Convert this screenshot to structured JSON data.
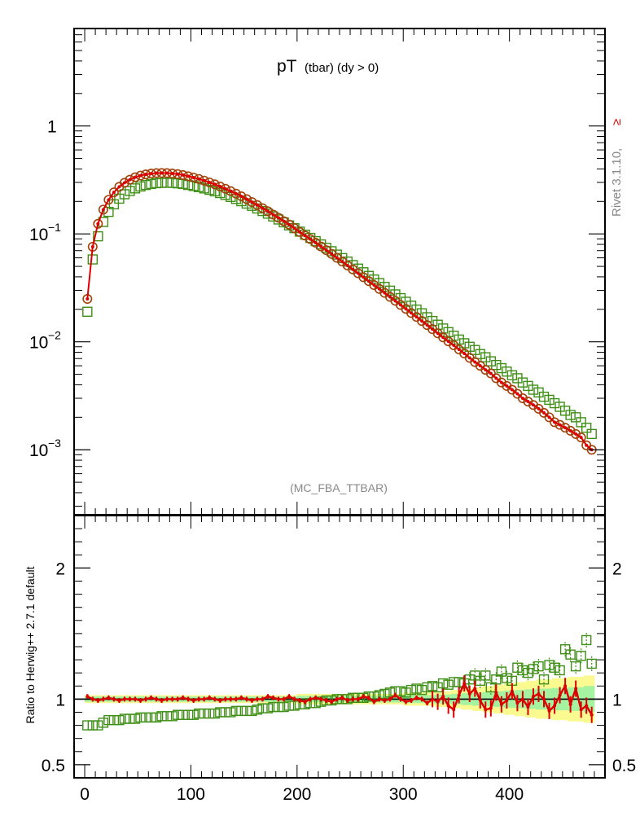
{
  "colors": {
    "herwig_default": "#dd0000",
    "variant_circles": "#a0420a",
    "variant_squares": "#3f8f17",
    "band_inner": "#a5f2a0",
    "band_outer": "#fafa90",
    "axis": "#000000",
    "annotation": "#888888"
  },
  "header": {
    "title_main": "pT",
    "title_sub": "(tbar) (dy > 0)",
    "watermark": "(MC_FBA_TTBAR)",
    "rivet_label": "Rivet 3.1.10,",
    "rivet_symbol": "≥"
  },
  "ratio_panel": {
    "ylabel": "Ratio to Herwig++ 2.7.1 default"
  },
  "chart_data": [
    {
      "type": "scatter",
      "panel": "main",
      "title": "pT (tbar) (dy > 0)",
      "yscale": "log",
      "xlim": [
        -10,
        490
      ],
      "ylim": [
        0.00025,
        8
      ],
      "y_ticks": [
        {
          "value": 0.001,
          "label": "10",
          "exp": "−3"
        },
        {
          "value": 0.01,
          "label": "10",
          "exp": "−2"
        },
        {
          "value": 0.1,
          "label": "10",
          "exp": "−1"
        },
        {
          "value": 1,
          "label": "1",
          "exp": ""
        }
      ],
      "x": [
        2.5,
        7.5,
        12.5,
        17.5,
        22.5,
        27.5,
        32.5,
        37.5,
        42.5,
        47.5,
        52.5,
        57.5,
        62.5,
        67.5,
        72.5,
        77.5,
        82.5,
        87.5,
        92.5,
        97.5,
        102.5,
        107.5,
        112.5,
        117.5,
        122.5,
        127.5,
        132.5,
        137.5,
        142.5,
        147.5,
        152.5,
        157.5,
        162.5,
        167.5,
        172.5,
        177.5,
        182.5,
        187.5,
        192.5,
        197.5,
        202.5,
        207.5,
        212.5,
        217.5,
        222.5,
        227.5,
        232.5,
        237.5,
        242.5,
        247.5,
        252.5,
        257.5,
        262.5,
        267.5,
        272.5,
        277.5,
        282.5,
        287.5,
        292.5,
        297.5,
        302.5,
        307.5,
        312.5,
        317.5,
        322.5,
        327.5,
        332.5,
        337.5,
        342.5,
        347.5,
        352.5,
        357.5,
        362.5,
        367.5,
        372.5,
        377.5,
        382.5,
        387.5,
        392.5,
        397.5,
        402.5,
        407.5,
        412.5,
        417.5,
        422.5,
        427.5,
        432.5,
        437.5,
        442.5,
        447.5,
        452.5,
        457.5,
        462.5,
        467.5,
        472.5,
        477.5
      ],
      "series": [
        {
          "role": "herwig_default",
          "style": "line",
          "values": [
            0.025,
            0.076,
            0.124,
            0.168,
            0.207,
            0.243,
            0.273,
            0.298,
            0.318,
            0.335,
            0.347,
            0.356,
            0.362,
            0.366,
            0.367,
            0.366,
            0.363,
            0.358,
            0.351,
            0.342,
            0.333,
            0.323,
            0.312,
            0.3,
            0.288,
            0.275,
            0.262,
            0.249,
            0.236,
            0.223,
            0.21,
            0.197,
            0.185,
            0.173,
            0.162,
            0.151,
            0.141,
            0.131,
            0.122,
            0.113,
            0.104,
            0.0965,
            0.0895,
            0.0828,
            0.0765,
            0.0707,
            0.0652,
            0.0601,
            0.0554,
            0.051,
            0.0469,
            0.0432,
            0.0397,
            0.0365,
            0.0336,
            0.0309,
            0.0284,
            0.0261,
            0.024,
            0.022,
            0.0202,
            0.0185,
            0.017,
            0.0156,
            0.0143,
            0.0131,
            0.012,
            0.011,
            0.0101,
            0.0093,
            0.0085,
            0.0078,
            0.0071,
            0.0065,
            0.006,
            0.0055,
            0.0051,
            0.0046,
            0.0042,
            0.0039,
            0.0036,
            0.0033,
            0.003,
            0.0028,
            0.0026,
            0.0024,
            0.0022,
            0.002,
            0.0018,
            0.0017,
            0.0016,
            0.0015,
            0.0014,
            0.0013,
            0.0011,
            0.001
          ]
        },
        {
          "role": "variant_circles",
          "style": "circle",
          "values": [
            0.025,
            0.076,
            0.124,
            0.168,
            0.207,
            0.243,
            0.273,
            0.298,
            0.318,
            0.335,
            0.347,
            0.356,
            0.362,
            0.366,
            0.367,
            0.366,
            0.363,
            0.358,
            0.351,
            0.342,
            0.333,
            0.323,
            0.312,
            0.3,
            0.288,
            0.275,
            0.262,
            0.249,
            0.236,
            0.223,
            0.21,
            0.197,
            0.185,
            0.173,
            0.162,
            0.151,
            0.141,
            0.131,
            0.122,
            0.113,
            0.104,
            0.0965,
            0.0895,
            0.0828,
            0.0765,
            0.0707,
            0.0652,
            0.0601,
            0.0554,
            0.051,
            0.0469,
            0.0432,
            0.0397,
            0.0365,
            0.0336,
            0.0309,
            0.0284,
            0.0261,
            0.024,
            0.022,
            0.0202,
            0.0185,
            0.017,
            0.0156,
            0.0143,
            0.0131,
            0.012,
            0.011,
            0.0101,
            0.0093,
            0.0085,
            0.0078,
            0.0071,
            0.0065,
            0.006,
            0.0055,
            0.0051,
            0.0046,
            0.0042,
            0.0039,
            0.0036,
            0.0033,
            0.003,
            0.0028,
            0.0026,
            0.0024,
            0.0022,
            0.002,
            0.0018,
            0.0017,
            0.0016,
            0.0015,
            0.0014,
            0.0013,
            0.0011,
            0.001
          ]
        },
        {
          "role": "variant_squares",
          "style": "square",
          "values": [
            0.019,
            0.058,
            0.095,
            0.129,
            0.16,
            0.188,
            0.212,
            0.233,
            0.25,
            0.264,
            0.275,
            0.284,
            0.29,
            0.295,
            0.297,
            0.298,
            0.297,
            0.294,
            0.29,
            0.284,
            0.278,
            0.271,
            0.264,
            0.256,
            0.248,
            0.239,
            0.23,
            0.22,
            0.211,
            0.201,
            0.191,
            0.182,
            0.172,
            0.163,
            0.154,
            0.145,
            0.136,
            0.128,
            0.12,
            0.113,
            0.105,
            0.0983,
            0.0918,
            0.0857,
            0.0799,
            0.0743,
            0.0691,
            0.0643,
            0.0597,
            0.0554,
            0.0514,
            0.0477,
            0.0441,
            0.0408,
            0.0378,
            0.035,
            0.0323,
            0.0298,
            0.0275,
            0.0254,
            0.0235,
            0.0216,
            0.0199,
            0.0184,
            0.0169,
            0.0156,
            0.0144,
            0.0133,
            0.0123,
            0.0114,
            0.0105,
            0.0097,
            0.009,
            0.0084,
            0.0077,
            0.0072,
            0.0066,
            0.0061,
            0.0057,
            0.0053,
            0.0049,
            0.0046,
            0.0042,
            0.0039,
            0.0036,
            0.0034,
            0.0031,
            0.0029,
            0.0027,
            0.0025,
            0.0023,
            0.0021,
            0.002,
            0.0018,
            0.0016,
            0.0014
          ]
        }
      ]
    },
    {
      "type": "scatter",
      "panel": "ratio",
      "ylabel": "Ratio to Herwig++ 2.7.1 default",
      "xlim": [
        -10,
        490
      ],
      "ylim": [
        0.4,
        2.4
      ],
      "x_ticks": [
        0,
        100,
        200,
        300,
        400
      ],
      "y_ticks": [
        0.5,
        1,
        2
      ],
      "y_tick_labels": [
        "0.5",
        "1",
        "2"
      ],
      "x": [
        2.5,
        7.5,
        12.5,
        17.5,
        22.5,
        27.5,
        32.5,
        37.5,
        42.5,
        47.5,
        52.5,
        57.5,
        62.5,
        67.5,
        72.5,
        77.5,
        82.5,
        87.5,
        92.5,
        97.5,
        102.5,
        107.5,
        112.5,
        117.5,
        122.5,
        127.5,
        132.5,
        137.5,
        142.5,
        147.5,
        152.5,
        157.5,
        162.5,
        167.5,
        172.5,
        177.5,
        182.5,
        187.5,
        192.5,
        197.5,
        202.5,
        207.5,
        212.5,
        217.5,
        222.5,
        227.5,
        232.5,
        237.5,
        242.5,
        247.5,
        252.5,
        257.5,
        262.5,
        267.5,
        272.5,
        277.5,
        282.5,
        287.5,
        292.5,
        297.5,
        302.5,
        307.5,
        312.5,
        317.5,
        322.5,
        327.5,
        332.5,
        337.5,
        342.5,
        347.5,
        352.5,
        357.5,
        362.5,
        367.5,
        372.5,
        377.5,
        382.5,
        387.5,
        392.5,
        397.5,
        402.5,
        407.5,
        412.5,
        417.5,
        422.5,
        427.5,
        432.5,
        437.5,
        442.5,
        447.5,
        452.5,
        457.5,
        462.5,
        467.5,
        472.5,
        477.5
      ],
      "band_inner_halfwidth": [
        0.02,
        0.02,
        0.02,
        0.02,
        0.02,
        0.02,
        0.02,
        0.02,
        0.02,
        0.02,
        0.02,
        0.02,
        0.02,
        0.02,
        0.02,
        0.02,
        0.02,
        0.02,
        0.02,
        0.02,
        0.02,
        0.02,
        0.02,
        0.02,
        0.02,
        0.02,
        0.02,
        0.02,
        0.02,
        0.02,
        0.02,
        0.02,
        0.02,
        0.02,
        0.02,
        0.02,
        0.02,
        0.02,
        0.02,
        0.02,
        0.025,
        0.025,
        0.025,
        0.025,
        0.025,
        0.025,
        0.025,
        0.025,
        0.025,
        0.025,
        0.025,
        0.025,
        0.025,
        0.025,
        0.025,
        0.025,
        0.025,
        0.025,
        0.025,
        0.025,
        0.03,
        0.03,
        0.03,
        0.03,
        0.03,
        0.03,
        0.035,
        0.035,
        0.035,
        0.04,
        0.04,
        0.045,
        0.045,
        0.05,
        0.05,
        0.055,
        0.055,
        0.06,
        0.06,
        0.065,
        0.065,
        0.07,
        0.07,
        0.075,
        0.075,
        0.08,
        0.08,
        0.08,
        0.085,
        0.085,
        0.085,
        0.09,
        0.09,
        0.09,
        0.1,
        0.1
      ],
      "band_outer_halfwidth": [
        0.03,
        0.03,
        0.03,
        0.03,
        0.03,
        0.03,
        0.03,
        0.03,
        0.03,
        0.03,
        0.03,
        0.03,
        0.03,
        0.03,
        0.03,
        0.03,
        0.03,
        0.03,
        0.03,
        0.03,
        0.03,
        0.03,
        0.03,
        0.03,
        0.03,
        0.03,
        0.03,
        0.03,
        0.03,
        0.03,
        0.03,
        0.03,
        0.03,
        0.03,
        0.03,
        0.03,
        0.03,
        0.03,
        0.03,
        0.03,
        0.04,
        0.04,
        0.04,
        0.04,
        0.04,
        0.04,
        0.04,
        0.04,
        0.04,
        0.04,
        0.04,
        0.04,
        0.04,
        0.04,
        0.04,
        0.04,
        0.04,
        0.04,
        0.04,
        0.04,
        0.05,
        0.05,
        0.05,
        0.05,
        0.05,
        0.05,
        0.06,
        0.06,
        0.06,
        0.07,
        0.07,
        0.08,
        0.08,
        0.09,
        0.09,
        0.1,
        0.1,
        0.11,
        0.11,
        0.12,
        0.12,
        0.13,
        0.13,
        0.14,
        0.14,
        0.15,
        0.15,
        0.15,
        0.16,
        0.16,
        0.16,
        0.17,
        0.17,
        0.17,
        0.18,
        0.18
      ],
      "series": [
        {
          "role": "herwig_default",
          "style": "line",
          "values": [
            1.02,
            1.0,
            0.99,
            1.0,
            1.01,
            1.0,
            0.99,
            1.0,
            1.0,
            1.0,
            0.99,
            1.0,
            1.01,
            1.0,
            0.99,
            1.0,
            1.0,
            1.0,
            1.01,
            1.0,
            0.99,
            1.0,
            1.0,
            1.01,
            1.0,
            0.99,
            1.0,
            1.0,
            1.0,
            1.01,
            1.0,
            0.99,
            1.0,
            1.0,
            1.02,
            1.01,
            1.0,
            1.0,
            1.02,
            1.0,
            0.99,
            0.98,
            1.0,
            1.01,
            1.0,
            0.99,
            0.98,
            1.0,
            1.01,
            0.99,
            1.0,
            1.0,
            1.02,
            1.01,
            0.98,
            1.0,
            0.99,
            1.0,
            1.03,
            1.0,
            0.98,
            0.99,
            1.01,
            1.0,
            0.97,
            1.0,
            0.98,
            1.02,
            0.95,
            0.92,
            1.03,
            1.12,
            1.04,
            1.08,
            0.99,
            0.92,
            0.93,
            1.05,
            0.96,
            0.99,
            1.06,
            0.97,
            1.0,
            0.94,
            1.02,
            1.04,
            1.0,
            0.91,
            0.95,
            1.03,
            1.1,
            0.96,
            1.08,
            0.92,
            0.95,
            0.88
          ]
        },
        {
          "role": "variant_circles",
          "style": "circle",
          "values": [
            1.0,
            1.0,
            1.0,
            1.0,
            1.0,
            1.0,
            1.0,
            1.0,
            1.0,
            1.0,
            1.0,
            1.0,
            1.0,
            1.0,
            1.0,
            1.0,
            1.0,
            1.0,
            1.0,
            1.0,
            1.0,
            1.0,
            1.0,
            1.0,
            1.0,
            1.0,
            1.0,
            1.0,
            1.0,
            1.0,
            1.0,
            1.0,
            1.0,
            1.0,
            1.0,
            1.0,
            1.0,
            1.0,
            1.0,
            1.0,
            1.0,
            1.0,
            1.0,
            1.0,
            1.0,
            1.0,
            1.0,
            1.0,
            1.0,
            1.0,
            1.0,
            1.0,
            1.0,
            1.0,
            1.0,
            1.0,
            1.0,
            1.0,
            1.0,
            1.0,
            1.0,
            1.0,
            1.0,
            1.0,
            1.0,
            1.0,
            1.0,
            1.0,
            1.0,
            1.0,
            1.0,
            1.0,
            1.0,
            1.0,
            1.0,
            1.0,
            1.0,
            1.0,
            1.0,
            1.0,
            1.0,
            1.0,
            1.0,
            1.0,
            1.0,
            1.0,
            1.0,
            1.0,
            1.0,
            1.0,
            1.0,
            1.0,
            1.0,
            1.0,
            1.0,
            1.0
          ]
        },
        {
          "role": "variant_squares",
          "style": "square",
          "values": [
            0.8,
            0.8,
            0.8,
            0.82,
            0.84,
            0.84,
            0.84,
            0.85,
            0.85,
            0.85,
            0.86,
            0.86,
            0.86,
            0.86,
            0.87,
            0.87,
            0.87,
            0.88,
            0.88,
            0.88,
            0.88,
            0.89,
            0.89,
            0.89,
            0.89,
            0.9,
            0.9,
            0.9,
            0.91,
            0.91,
            0.91,
            0.91,
            0.92,
            0.93,
            0.93,
            0.94,
            0.94,
            0.94,
            0.95,
            0.95,
            0.96,
            0.96,
            0.97,
            0.97,
            0.98,
            0.99,
            0.99,
            1.0,
            1.0,
            1.0,
            1.01,
            1.01,
            1.01,
            1.02,
            1.02,
            1.03,
            1.04,
            1.05,
            1.06,
            1.06,
            1.05,
            1.07,
            1.08,
            1.07,
            1.09,
            1.1,
            1.09,
            1.12,
            1.11,
            1.13,
            1.13,
            1.12,
            1.15,
            1.18,
            1.14,
            1.18,
            1.09,
            1.15,
            1.21,
            1.16,
            1.14,
            1.24,
            1.22,
            1.2,
            1.23,
            1.25,
            1.15,
            1.26,
            1.24,
            1.22,
            1.38,
            1.34,
            1.25,
            1.33,
            1.45,
            1.27
          ]
        }
      ]
    }
  ]
}
